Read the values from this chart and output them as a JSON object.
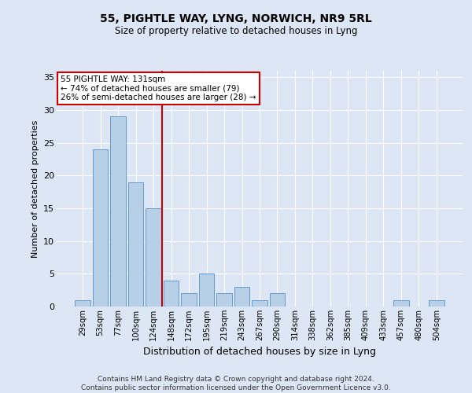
{
  "title": "55, PIGHTLE WAY, LYNG, NORWICH, NR9 5RL",
  "subtitle": "Size of property relative to detached houses in Lyng",
  "xlabel": "Distribution of detached houses by size in Lyng",
  "ylabel": "Number of detached properties",
  "categories": [
    "29sqm",
    "53sqm",
    "77sqm",
    "100sqm",
    "124sqm",
    "148sqm",
    "172sqm",
    "195sqm",
    "219sqm",
    "243sqm",
    "267sqm",
    "290sqm",
    "314sqm",
    "338sqm",
    "362sqm",
    "385sqm",
    "409sqm",
    "433sqm",
    "457sqm",
    "480sqm",
    "504sqm"
  ],
  "values": [
    1,
    24,
    29,
    19,
    15,
    4,
    2,
    5,
    2,
    3,
    1,
    2,
    0,
    0,
    0,
    0,
    0,
    0,
    1,
    0,
    1
  ],
  "bar_color": "#b8cfe8",
  "bar_edge_color": "#6699cc",
  "vline_x_index": 4.5,
  "vline_color": "#cc0000",
  "annotation_text": "55 PIGHTLE WAY: 131sqm\n← 74% of detached houses are smaller (79)\n26% of semi-detached houses are larger (28) →",
  "annotation_box_color": "#ffffff",
  "annotation_box_edge_color": "#cc0000",
  "ylim": [
    0,
    36
  ],
  "yticks": [
    0,
    5,
    10,
    15,
    20,
    25,
    30,
    35
  ],
  "bg_color": "#dce6f5",
  "grid_color": "#ffffff",
  "footer": "Contains HM Land Registry data © Crown copyright and database right 2024.\nContains public sector information licensed under the Open Government Licence v3.0."
}
